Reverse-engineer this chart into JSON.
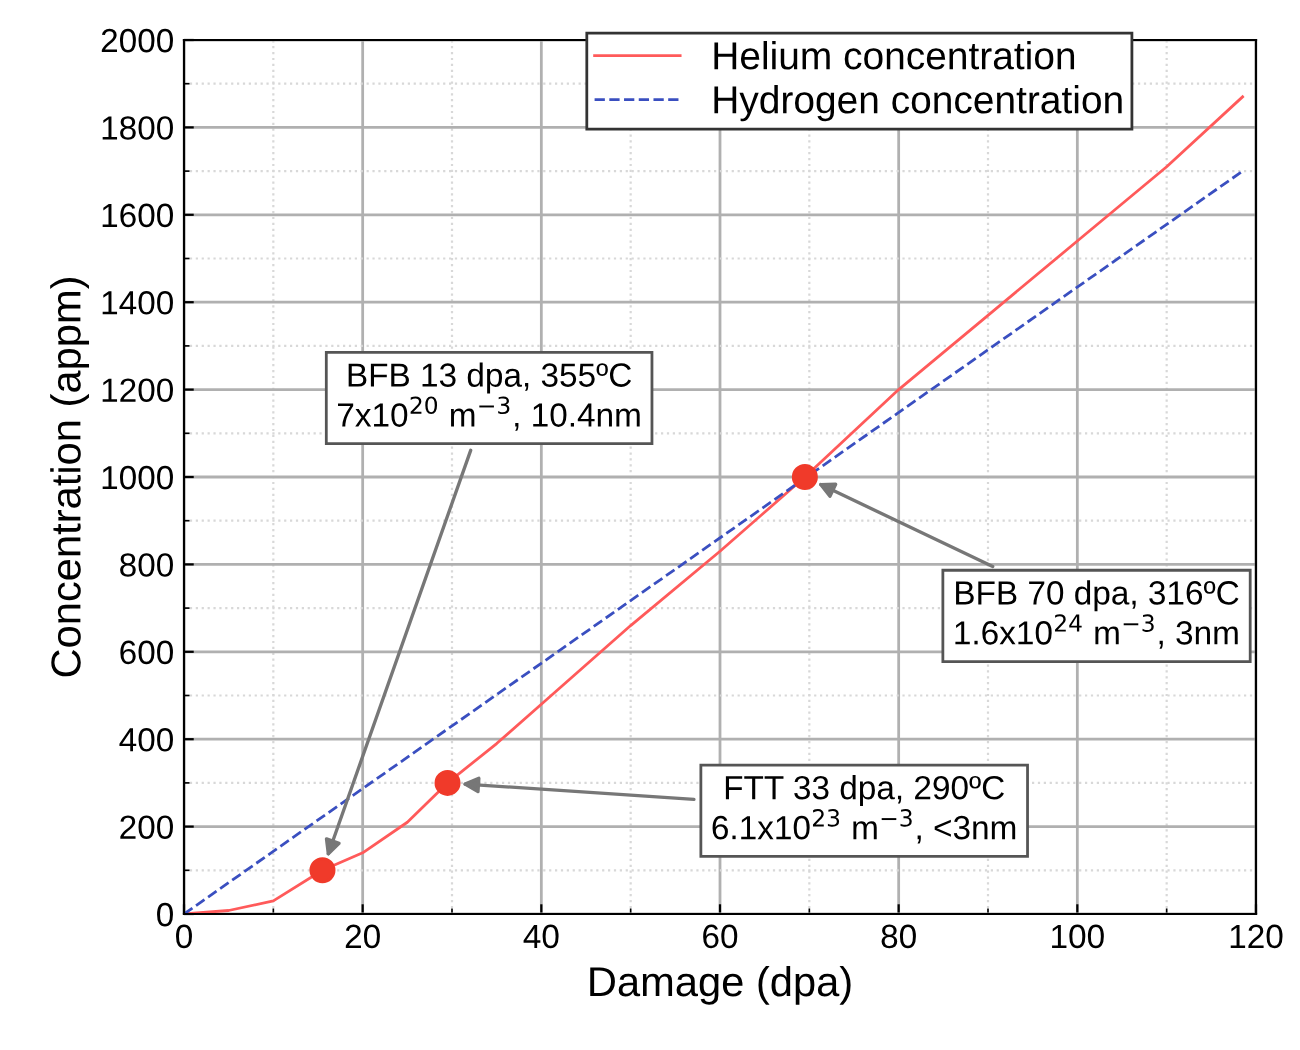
{
  "chart_data": {
    "type": "line",
    "xlabel": "Damage (dpa)",
    "ylabel": "Concentration (appm)",
    "xlim": [
      0,
      120
    ],
    "ylim": [
      0,
      2000
    ],
    "xticks": [
      0,
      20,
      40,
      60,
      80,
      100,
      120
    ],
    "yticks": [
      0,
      200,
      400,
      600,
      800,
      1000,
      1200,
      1400,
      1600,
      1800,
      2000
    ],
    "grid": true,
    "legend": "top",
    "line_style": "solid",
    "marker": "none",
    "series": [
      {
        "name": "Helium concentration",
        "color": "#ff5a5a",
        "x": [
          0,
          5,
          10,
          15.5,
          20,
          25,
          29.5,
          35,
          40,
          50,
          60,
          69.5,
          80,
          90,
          100,
          110,
          118.5
        ],
        "values": [
          0,
          8,
          30,
          100,
          140,
          210,
          300,
          390,
          480,
          660,
          830,
          1000,
          1200,
          1370,
          1540,
          1710,
          1870
        ]
      },
      {
        "name": "Hydrogen concentration",
        "color": "#3a4fc0",
        "line_style": "dashed",
        "x": [
          0,
          118.5
        ],
        "values": [
          0,
          1700
        ]
      },
      {
        "type": "scatter",
        "marker": "circle",
        "color": "#f03a2a",
        "x": [
          15.5,
          29.5,
          69.5
        ],
        "values": [
          100,
          300,
          1000
        ]
      }
    ],
    "annotations": [
      {
        "text": "BFB 13 dpa, 355ºC\n7x10$^{20}$ m$^{−3}$, 10.4nm",
        "x": 15.5,
        "y": 100
      },
      {
        "text": "FTT 33 dpa, 290ºC\n6.1x10$^{23}$ m$^{−3}$, <3nm",
        "x": 29.5,
        "y": 300
      },
      {
        "text": "BFB 70 dpa, 316ºC\n1.6x10$^{24}$ m$^{−3}$, 3nm",
        "x": 69.5,
        "y": 1000
      }
    ]
  }
}
